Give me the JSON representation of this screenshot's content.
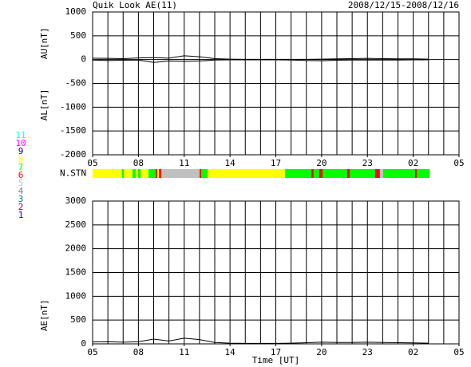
{
  "chart_data": [
    {
      "type": "line",
      "title": "Quik Look AE(11)",
      "date_range": "2008/12/15-2008/12/16",
      "ylabels": [
        "AU[nT]",
        "AL[nT]"
      ],
      "ylim": [
        -2000,
        1000
      ],
      "yticks": [
        1000,
        500,
        0,
        -500,
        -1000,
        -1500,
        -2000
      ],
      "xlim": [
        0,
        24
      ],
      "xminor": 1,
      "xticks": [
        {
          "value": 0,
          "label": "05"
        },
        {
          "value": 3,
          "label": "08"
        },
        {
          "value": 6,
          "label": "11"
        },
        {
          "value": 9,
          "label": "14"
        },
        {
          "value": 12,
          "label": "17"
        },
        {
          "value": 15,
          "label": "20"
        },
        {
          "value": 18,
          "label": "23"
        },
        {
          "value": 21,
          "label": "02"
        },
        {
          "value": 24,
          "label": "05"
        }
      ],
      "x": [
        0,
        1,
        2,
        3,
        4,
        5,
        6,
        7,
        8,
        9,
        10,
        11,
        12,
        13,
        14,
        15,
        16,
        17,
        18,
        19,
        20,
        21,
        22
      ],
      "series": [
        {
          "name": "AU",
          "color": "#000000",
          "values": [
            30,
            25,
            20,
            35,
            40,
            30,
            80,
            60,
            20,
            10,
            5,
            5,
            5,
            5,
            5,
            10,
            15,
            20,
            25,
            20,
            15,
            15,
            10
          ]
        },
        {
          "name": "AL",
          "color": "#000000",
          "values": [
            -10,
            -20,
            -15,
            -10,
            -60,
            -30,
            -40,
            -30,
            -10,
            -5,
            -5,
            -5,
            -5,
            -10,
            -20,
            -25,
            -15,
            -10,
            -10,
            -10,
            -10,
            -5,
            -5
          ]
        }
      ]
    },
    {
      "type": "strip",
      "label": "N.STN",
      "stations": [
        {
          "n": 11,
          "color": "#00ffff"
        },
        {
          "n": 10,
          "color": "#ff00ff"
        },
        {
          "n": 9,
          "color": "#000080"
        },
        {
          "n": 8,
          "color": "#ffff00"
        },
        {
          "n": 7,
          "color": "#00ff00"
        },
        {
          "n": 6,
          "color": "#ff0000"
        },
        {
          "n": 5,
          "color": "#c0c0c0"
        },
        {
          "n": 4,
          "color": "#808080"
        },
        {
          "n": 3,
          "color": "#008080"
        },
        {
          "n": 2,
          "color": "#800080"
        },
        {
          "n": 1,
          "color": "#0000ff"
        }
      ],
      "xlim": [
        0,
        24
      ],
      "bins": [
        0,
        1.93,
        2.04,
        2.61,
        2.82,
        2.98,
        3.14,
        3.66,
        4.13,
        4.24,
        4.34,
        4.5,
        7.01,
        7.11,
        7.53,
        12.6,
        14.33,
        14.48,
        14.85,
        15.06,
        16.68,
        16.84,
        18.51,
        18.82,
        19.03,
        21.12,
        21.23,
        22.07
      ],
      "values": [
        8,
        7,
        8,
        7,
        8,
        7,
        8,
        7,
        6,
        8,
        6,
        5,
        6,
        7,
        8,
        7,
        6,
        7,
        6,
        7,
        6,
        7,
        6,
        5,
        7,
        6,
        7
      ]
    },
    {
      "type": "line",
      "ylabels": [
        "AE[nT]"
      ],
      "xlabel": "Time [UT]",
      "ylim": [
        0,
        3000
      ],
      "yticks": [
        3000,
        2500,
        2000,
        1500,
        1000,
        500,
        0
      ],
      "xlim": [
        0,
        24
      ],
      "xminor": 1,
      "xticks": [
        {
          "value": 0,
          "label": "05"
        },
        {
          "value": 3,
          "label": "08"
        },
        {
          "value": 6,
          "label": "11"
        },
        {
          "value": 9,
          "label": "14"
        },
        {
          "value": 12,
          "label": "17"
        },
        {
          "value": 15,
          "label": "20"
        },
        {
          "value": 18,
          "label": "23"
        },
        {
          "value": 21,
          "label": "02"
        },
        {
          "value": 24,
          "label": "05"
        }
      ],
      "x": [
        0,
        1,
        2,
        3,
        4,
        5,
        6,
        7,
        8,
        9,
        10,
        11,
        12,
        13,
        14,
        15,
        16,
        17,
        18,
        19,
        20,
        21,
        22
      ],
      "series": [
        {
          "name": "AE",
          "color": "#000000",
          "values": [
            40,
            45,
            35,
            45,
            100,
            60,
            120,
            90,
            30,
            15,
            10,
            10,
            10,
            15,
            25,
            35,
            30,
            30,
            35,
            30,
            25,
            20,
            15
          ]
        }
      ]
    }
  ]
}
